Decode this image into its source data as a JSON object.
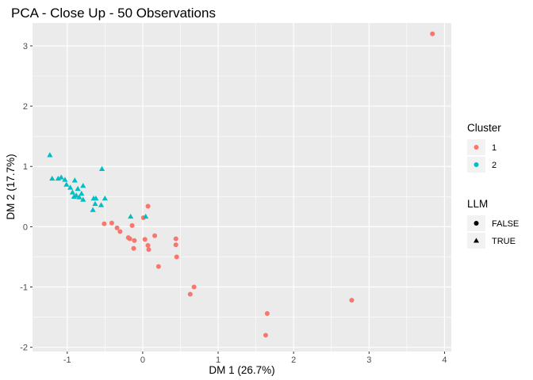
{
  "chart_data": {
    "type": "scatter",
    "title": "PCA - Close Up - 50 Observations",
    "xlabel": "DM 1 (26.7%)",
    "ylabel": "DM 2 (17.7%)",
    "xlim": [
      -1.46,
      4.09
    ],
    "ylim": [
      -2.07,
      3.38
    ],
    "xticks": [
      -1,
      0,
      1,
      2,
      3,
      4
    ],
    "yticks": [
      -2,
      -1,
      0,
      1,
      2,
      3
    ],
    "grid": true,
    "legend_position": "right",
    "colors": {
      "1": "#F8766D",
      "2": "#00BFC4",
      "panel": "#EBEBEB",
      "grid": "#FFFFFF"
    },
    "legends": [
      {
        "title": "Cluster",
        "entries": [
          {
            "label": "1",
            "shape": "circle",
            "color": "#F8766D"
          },
          {
            "label": "2",
            "shape": "circle",
            "color": "#00BFC4"
          }
        ]
      },
      {
        "title": "LLM",
        "entries": [
          {
            "label": "FALSE",
            "shape": "circle",
            "color": "#000000"
          },
          {
            "label": "TRUE",
            "shape": "triangle",
            "color": "#000000"
          }
        ]
      }
    ],
    "points": [
      {
        "x": 3.84,
        "y": 3.2,
        "cluster": "1",
        "llm": "FALSE"
      },
      {
        "x": 2.77,
        "y": -1.22,
        "cluster": "1",
        "llm": "FALSE"
      },
      {
        "x": 1.65,
        "y": -1.44,
        "cluster": "1",
        "llm": "FALSE"
      },
      {
        "x": 1.63,
        "y": -1.8,
        "cluster": "1",
        "llm": "FALSE"
      },
      {
        "x": 0.68,
        "y": -1.0,
        "cluster": "1",
        "llm": "FALSE"
      },
      {
        "x": 0.63,
        "y": -1.12,
        "cluster": "1",
        "llm": "FALSE"
      },
      {
        "x": 0.21,
        "y": -0.66,
        "cluster": "1",
        "llm": "FALSE"
      },
      {
        "x": 0.44,
        "y": -0.2,
        "cluster": "1",
        "llm": "FALSE"
      },
      {
        "x": 0.44,
        "y": -0.3,
        "cluster": "1",
        "llm": "FALSE"
      },
      {
        "x": 0.45,
        "y": -0.5,
        "cluster": "1",
        "llm": "FALSE"
      },
      {
        "x": 0.16,
        "y": -0.15,
        "cluster": "1",
        "llm": "FALSE"
      },
      {
        "x": 0.07,
        "y": 0.34,
        "cluster": "1",
        "llm": "FALSE"
      },
      {
        "x": 0.01,
        "y": 0.15,
        "cluster": "1",
        "llm": "FALSE"
      },
      {
        "x": 0.03,
        "y": -0.21,
        "cluster": "1",
        "llm": "FALSE"
      },
      {
        "x": 0.07,
        "y": -0.31,
        "cluster": "1",
        "llm": "FALSE"
      },
      {
        "x": 0.08,
        "y": -0.38,
        "cluster": "1",
        "llm": "FALSE"
      },
      {
        "x": -0.11,
        "y": -0.23,
        "cluster": "1",
        "llm": "FALSE"
      },
      {
        "x": -0.12,
        "y": -0.36,
        "cluster": "1",
        "llm": "FALSE"
      },
      {
        "x": -0.17,
        "y": -0.2,
        "cluster": "1",
        "llm": "FALSE"
      },
      {
        "x": -0.19,
        "y": -0.18,
        "cluster": "1",
        "llm": "FALSE"
      },
      {
        "x": -0.14,
        "y": 0.02,
        "cluster": "1",
        "llm": "FALSE"
      },
      {
        "x": -0.3,
        "y": -0.08,
        "cluster": "1",
        "llm": "FALSE"
      },
      {
        "x": -0.34,
        "y": -0.02,
        "cluster": "1",
        "llm": "FALSE"
      },
      {
        "x": -0.41,
        "y": 0.06,
        "cluster": "1",
        "llm": "FALSE"
      },
      {
        "x": -0.51,
        "y": 0.05,
        "cluster": "1",
        "llm": "FALSE"
      },
      {
        "x": -1.23,
        "y": 1.19,
        "cluster": "2",
        "llm": "TRUE"
      },
      {
        "x": -1.2,
        "y": 0.8,
        "cluster": "2",
        "llm": "TRUE"
      },
      {
        "x": -1.12,
        "y": 0.8,
        "cluster": "2",
        "llm": "TRUE"
      },
      {
        "x": -1.08,
        "y": 0.82,
        "cluster": "2",
        "llm": "TRUE"
      },
      {
        "x": -1.03,
        "y": 0.78,
        "cluster": "2",
        "llm": "TRUE"
      },
      {
        "x": -1.01,
        "y": 0.7,
        "cluster": "2",
        "llm": "TRUE"
      },
      {
        "x": -0.96,
        "y": 0.65,
        "cluster": "2",
        "llm": "TRUE"
      },
      {
        "x": -0.9,
        "y": 0.77,
        "cluster": "2",
        "llm": "TRUE"
      },
      {
        "x": -0.93,
        "y": 0.57,
        "cluster": "2",
        "llm": "TRUE"
      },
      {
        "x": -0.86,
        "y": 0.63,
        "cluster": "2",
        "llm": "TRUE"
      },
      {
        "x": -0.79,
        "y": 0.68,
        "cluster": "2",
        "llm": "TRUE"
      },
      {
        "x": -0.91,
        "y": 0.5,
        "cluster": "2",
        "llm": "TRUE"
      },
      {
        "x": -0.88,
        "y": 0.52,
        "cluster": "2",
        "llm": "TRUE"
      },
      {
        "x": -0.84,
        "y": 0.49,
        "cluster": "2",
        "llm": "TRUE"
      },
      {
        "x": -0.81,
        "y": 0.55,
        "cluster": "2",
        "llm": "TRUE"
      },
      {
        "x": -0.79,
        "y": 0.45,
        "cluster": "2",
        "llm": "TRUE"
      },
      {
        "x": -0.65,
        "y": 0.47,
        "cluster": "2",
        "llm": "TRUE"
      },
      {
        "x": -0.62,
        "y": 0.47,
        "cluster": "2",
        "llm": "TRUE"
      },
      {
        "x": -0.63,
        "y": 0.38,
        "cluster": "2",
        "llm": "TRUE"
      },
      {
        "x": -0.66,
        "y": 0.28,
        "cluster": "2",
        "llm": "TRUE"
      },
      {
        "x": -0.55,
        "y": 0.36,
        "cluster": "2",
        "llm": "TRUE"
      },
      {
        "x": -0.5,
        "y": 0.47,
        "cluster": "2",
        "llm": "TRUE"
      },
      {
        "x": -0.54,
        "y": 0.96,
        "cluster": "2",
        "llm": "TRUE"
      },
      {
        "x": -0.16,
        "y": 0.17,
        "cluster": "2",
        "llm": "TRUE"
      },
      {
        "x": 0.04,
        "y": 0.17,
        "cluster": "2",
        "llm": "TRUE"
      }
    ]
  }
}
